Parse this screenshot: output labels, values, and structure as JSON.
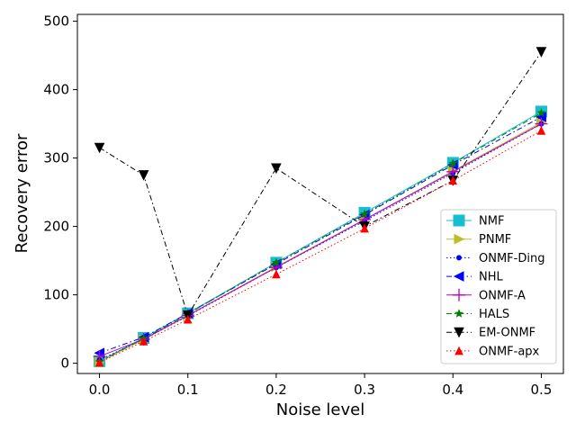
{
  "chart_data": {
    "type": "line",
    "title": "",
    "xlabel": "Noise level",
    "ylabel": "Recovery error",
    "x": [
      0.0,
      0.05,
      0.1,
      0.2,
      0.3,
      0.4,
      0.5
    ],
    "xlim": [
      -0.025,
      0.525
    ],
    "ylim": [
      -15,
      510
    ],
    "xticks": [
      0.0,
      0.1,
      0.2,
      0.3,
      0.4,
      0.5
    ],
    "xtick_labels": [
      "0.0",
      "0.1",
      "0.2",
      "0.3",
      "0.4",
      "0.5"
    ],
    "yticks": [
      0,
      100,
      200,
      300,
      400,
      500
    ],
    "ytick_labels": [
      "0",
      "100",
      "200",
      "300",
      "400",
      "500"
    ],
    "grid": false,
    "legend_position": "lower-right",
    "series": [
      {
        "name": "NMF",
        "color": "#17becf",
        "marker": "square",
        "line": "solid",
        "values": [
          3,
          37,
          73,
          147,
          220,
          293,
          368
        ]
      },
      {
        "name": "PNMF",
        "color": "#bcbd22",
        "marker": "triangle-right",
        "line": "solid",
        "values": [
          2,
          35,
          70,
          141,
          210,
          281,
          352
        ]
      },
      {
        "name": "ONMF-Ding",
        "color": "#0000ff",
        "marker": "circle-small",
        "line": "dotted",
        "values": [
          5,
          35,
          69,
          140,
          208,
          278,
          350
        ]
      },
      {
        "name": "NHL",
        "color": "#0000ff",
        "marker": "triangle-left",
        "line": "dashdot",
        "values": [
          15,
          38,
          73,
          145,
          217,
          290,
          360
        ]
      },
      {
        "name": "ONMF-A",
        "color": "#bf00bf",
        "marker": "plus",
        "line": "solid",
        "values": [
          10,
          35,
          70,
          140,
          210,
          280,
          350
        ]
      },
      {
        "name": "HALS",
        "color": "#008000",
        "marker": "star",
        "line": "dashdot",
        "values": [
          2,
          36,
          72,
          147,
          218,
          292,
          366
        ]
      },
      {
        "name": "EM-ONMF",
        "color": "#000000",
        "marker": "triangle-down",
        "line": "dashdot",
        "values": [
          315,
          275,
          70,
          285,
          200,
          267,
          455
        ]
      },
      {
        "name": "ONMF-apx",
        "color": "#ff0000",
        "marker": "triangle-up",
        "line": "dotted",
        "values": [
          1,
          32,
          64,
          130,
          197,
          267,
          340
        ]
      }
    ]
  }
}
